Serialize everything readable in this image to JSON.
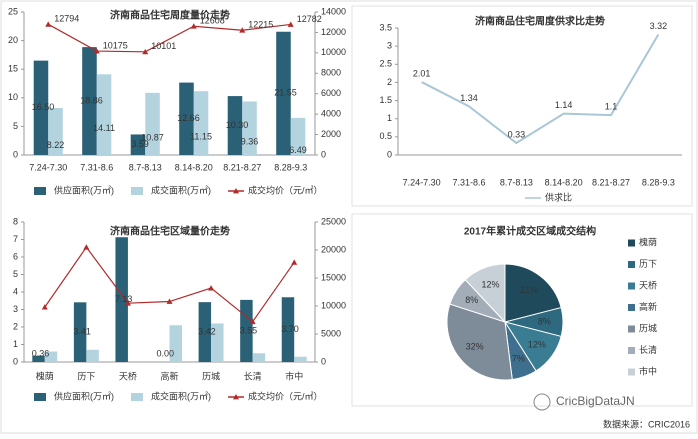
{
  "chart_data": [
    {
      "type": "combo",
      "title": "济南商品住宅周度量价走势",
      "categories": [
        "7.24-7.30",
        "7.31-8.6",
        "8.7-8.13",
        "8.14-8.20",
        "8.21-8.27",
        "8.28-9.3"
      ],
      "series": [
        {
          "name": "供应面积(万㎡)",
          "type": "bar",
          "color": "#2a6176",
          "values": [
            16.5,
            18.86,
            3.59,
            12.66,
            10.3,
            21.55
          ],
          "value_labels": [
            "16.50",
            "18.86",
            "3.59",
            "12.66",
            "10.30",
            "21.55"
          ]
        },
        {
          "name": "成交面积(万㎡)",
          "type": "bar",
          "color": "#b3d3df",
          "values": [
            8.22,
            14.11,
            10.87,
            11.15,
            9.36,
            6.49
          ]
        },
        {
          "name": "成交均价（元/㎡）",
          "type": "line",
          "axis": "y2",
          "color": "#b22a2a",
          "values": [
            12794,
            10175,
            10101,
            12608,
            12215,
            12782
          ],
          "data_labels": true
        }
      ],
      "ylim": [
        0,
        25
      ],
      "yticks": [
        0,
        5,
        10,
        15,
        20,
        25
      ],
      "y2lim": [
        0,
        14000
      ],
      "y2ticks": [
        0,
        2000,
        4000,
        6000,
        8000,
        10000,
        12000,
        14000
      ]
    },
    {
      "type": "line",
      "title": "济南商品住宅周度供求比走势",
      "categories": [
        "7.24-7.30",
        "7.31-8.6",
        "8.7-8.13",
        "8.14-8.20",
        "8.21-8.27",
        "8.28-9.3"
      ],
      "series": [
        {
          "name": "供求比",
          "color": "#a9c7d6",
          "values": [
            2.01,
            1.34,
            0.33,
            1.14,
            1.1,
            3.32
          ]
        }
      ],
      "ylim": [
        0,
        3.5
      ],
      "yticks": [
        0,
        0.5,
        1,
        1.5,
        2,
        2.5,
        3,
        3.5
      ]
    },
    {
      "type": "combo",
      "title": "济南商品住宅区域量价走势",
      "categories": [
        "槐荫",
        "历下",
        "天桥",
        "高新",
        "历城",
        "长清",
        "市中"
      ],
      "series": [
        {
          "name": "供应面积(万㎡)",
          "type": "bar",
          "color": "#2a6176",
          "values": [
            0.36,
            3.41,
            7.13,
            0,
            3.42,
            3.55,
            3.7
          ],
          "value_labels": [
            "0.36",
            "3.41",
            "7.13",
            "0.00",
            "3.42",
            "3.55",
            "3.70"
          ]
        },
        {
          "name": "成交面积(万㎡)",
          "type": "bar",
          "color": "#b3d3df",
          "values": [
            0.6,
            0.7,
            0,
            2.1,
            2.2,
            0.5,
            0.3
          ]
        },
        {
          "name": "成交均价（元/㎡）",
          "type": "line",
          "axis": "y2",
          "color": "#b22a2a",
          "values": [
            9800,
            20500,
            10500,
            10800,
            13200,
            7200,
            17800
          ]
        }
      ],
      "ylim": [
        0,
        8
      ],
      "yticks": [
        0,
        1,
        2,
        3,
        4,
        5,
        6,
        7,
        8
      ],
      "y2lim": [
        0,
        25000
      ],
      "y2ticks": [
        0,
        5000,
        10000,
        15000,
        20000,
        25000
      ]
    },
    {
      "type": "pie",
      "title": "2017年累计成交区域成交结构",
      "categories": [
        "槐荫",
        "历下",
        "天桥",
        "高新",
        "历城",
        "长清",
        "市中"
      ],
      "values": [
        21,
        8,
        12,
        7,
        32,
        8,
        12
      ],
      "value_labels": [
        "21%",
        "8%",
        "12%",
        "7%",
        "32%",
        "8%",
        "12%"
      ],
      "colors": [
        "#1f4a5c",
        "#2d6a80",
        "#3a7d93",
        "#3f6f8e",
        "#7e8b98",
        "#a3adb7",
        "#c8d0d7"
      ]
    }
  ],
  "watermark": "CricBigDataJN",
  "source": "数据来源：CRIC2016"
}
